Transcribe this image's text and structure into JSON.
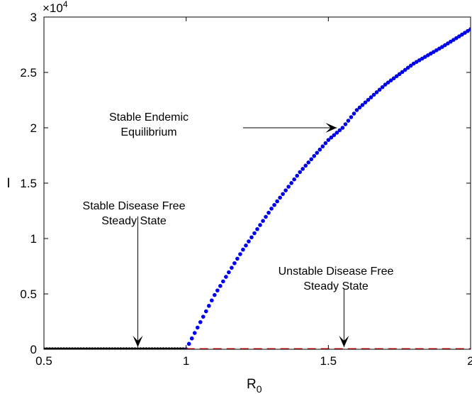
{
  "chart_data": {
    "type": "scatter",
    "xlabel": "R",
    "xlabel_sub": "0",
    "ylabel": "I",
    "xlim": [
      0.5,
      2
    ],
    "ylim": [
      0,
      30000
    ],
    "y_multiplier": "×10",
    "y_multiplier_exp": "4",
    "x_ticks": [
      0.5,
      1,
      1.5,
      2
    ],
    "x_tick_labels": [
      "0.5",
      "1",
      "1.5",
      "2"
    ],
    "y_ticks": [
      0,
      5000,
      10000,
      15000,
      20000,
      25000,
      30000
    ],
    "y_tick_labels": [
      "0",
      "0.5",
      "1",
      "1.5",
      "2",
      "2.5",
      "3"
    ],
    "grid": false,
    "series": [
      {
        "color": "#000000",
        "style": "dots",
        "x_range": [
          0.5,
          1
        ],
        "points": [
          [
            0.5,
            0
          ],
          [
            1,
            0
          ]
        ]
      },
      {
        "color": "#0000ee",
        "style": "dots",
        "x_range": [
          1,
          2
        ],
        "points": [
          [
            1,
            0
          ],
          [
            1.1,
            4900
          ],
          [
            1.2,
            9000
          ],
          [
            1.3,
            12700
          ],
          [
            1.4,
            16000
          ],
          [
            1.5,
            18900
          ],
          [
            1.55,
            20000
          ],
          [
            1.6,
            21600
          ],
          [
            1.7,
            23900
          ],
          [
            1.8,
            25800
          ],
          [
            1.9,
            27300
          ],
          [
            2,
            28900
          ]
        ]
      },
      {
        "color": "#ee0000",
        "style": "dashed",
        "points": [
          [
            1,
            0
          ],
          [
            2,
            0
          ]
        ]
      }
    ],
    "annotations": [
      {
        "lines": [
          "Stable Endemic",
          "Equilibrium"
        ],
        "arrow_from": [
          1.2,
          20000
        ],
        "arrow_to": [
          1.53,
          20000
        ]
      },
      {
        "lines": [
          "Stable Disease Free",
          "Steady State"
        ],
        "arrow_from": [
          0.83,
          12000
        ],
        "arrow_to": [
          0.83,
          200
        ]
      },
      {
        "lines": [
          "Unstable Disease Free",
          "Steady State"
        ],
        "arrow_from": [
          1.555,
          5500
        ],
        "arrow_to": [
          1.555,
          200
        ]
      }
    ]
  }
}
